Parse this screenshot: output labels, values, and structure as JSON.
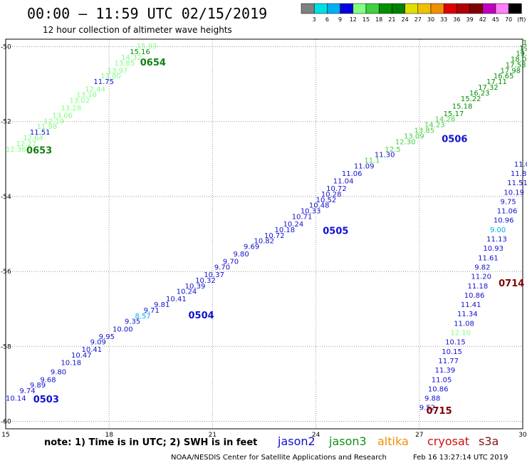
{
  "title": "00:00 – 11:59 UTC 02/15/2019",
  "subtitle": "12 hour collection of altimeter wave heights",
  "note": "note: 1) Time is in UTC; 2) SWH is in feet",
  "credit": "NOAA/NESDIS Center for Satellite Applications and Research",
  "timestamp": "Feb 16 13:27:14 UTC 2019",
  "satellites": [
    {
      "name": "jason2",
      "color": "#1010d0"
    },
    {
      "name": "jason3",
      "color": "#109010"
    },
    {
      "name": "altika",
      "color": "#f09000"
    },
    {
      "name": "cryosat",
      "color": "#d01010"
    },
    {
      "name": "s3a",
      "color": "#801010"
    }
  ],
  "color_scale": {
    "labels": [
      "3",
      "6",
      "9",
      "12",
      "15",
      "18",
      "21",
      "24",
      "27",
      "30",
      "33",
      "36",
      "39",
      "42",
      "45",
      "70",
      "(ft)"
    ],
    "colors": [
      "#808080",
      "#00e0e0",
      "#00b0f0",
      "#0000e0",
      "#80ff80",
      "#40d040",
      "#009000",
      "#008000",
      "#e0e000",
      "#f0c000",
      "#f09000",
      "#e00000",
      "#b00000",
      "#800000",
      "#c000c0",
      "#ff80ff",
      "#000000"
    ]
  },
  "chart_data": {
    "type": "scatter",
    "xlim": [
      15,
      30
    ],
    "ylim": [
      -60.2,
      -49.8
    ],
    "x_ticks": [
      15,
      18,
      21,
      24,
      27,
      30
    ],
    "y_ticks": [
      -50,
      -52,
      -54,
      -56,
      -58,
      -60
    ],
    "grid": true,
    "pass_labels": [
      {
        "label": "0503",
        "x": 15.8,
        "y": -59.5,
        "color": "#1010d0"
      },
      {
        "label": "0504",
        "x": 20.3,
        "y": -57.25,
        "color": "#1010d0"
      },
      {
        "label": "0505",
        "x": 24.2,
        "y": -55.0,
        "color": "#1010d0"
      },
      {
        "label": "0506",
        "x": 27.65,
        "y": -52.55,
        "color": "#1010d0"
      },
      {
        "label": "0653",
        "x": 15.6,
        "y": -52.85,
        "color": "#108010"
      },
      {
        "label": "0654",
        "x": 18.9,
        "y": -50.5,
        "color": "#108010"
      },
      {
        "label": "0714",
        "x": 29.3,
        "y": -56.4,
        "color": "#800000"
      },
      {
        "label": "0715",
        "x": 27.2,
        "y": -59.8,
        "color": "#800000"
      }
    ],
    "series": [
      {
        "name": "0503-0506",
        "points": [
          {
            "x": 15.0,
            "y": -59.45,
            "label": "10.14",
            "color": "#1010d0"
          },
          {
            "x": 15.4,
            "y": -59.25,
            "label": "9.74",
            "color": "#1010d0"
          },
          {
            "x": 15.7,
            "y": -59.1,
            "label": "9.89",
            "color": "#1010d0"
          },
          {
            "x": 16.0,
            "y": -58.95,
            "label": "9.68",
            "color": "#1010d0"
          },
          {
            "x": 16.3,
            "y": -58.75,
            "label": "9.80",
            "color": "#1010d0"
          },
          {
            "x": 16.6,
            "y": -58.5,
            "label": "10.18",
            "color": "#1010d0"
          },
          {
            "x": 16.9,
            "y": -58.3,
            "label": "10.47",
            "color": "#1010d0"
          },
          {
            "x": 17.2,
            "y": -58.15,
            "label": "10.41",
            "color": "#1010d0"
          },
          {
            "x": 17.45,
            "y": -57.95,
            "label": "9.09",
            "color": "#1010d0"
          },
          {
            "x": 17.7,
            "y": -57.8,
            "label": "9.95",
            "color": "#1010d0"
          },
          {
            "x": 18.1,
            "y": -57.6,
            "label": "10.00",
            "color": "#1010d0"
          },
          {
            "x": 18.45,
            "y": -57.4,
            "label": "9.35",
            "color": "#1010d0"
          },
          {
            "x": 18.75,
            "y": -57.25,
            "label": "8.57",
            "color": "#00b0f0"
          },
          {
            "x": 19.0,
            "y": -57.1,
            "label": "9.71",
            "color": "#1010d0"
          },
          {
            "x": 19.3,
            "y": -56.95,
            "label": "9.81",
            "color": "#1010d0"
          },
          {
            "x": 19.65,
            "y": -56.8,
            "label": "10.41",
            "color": "#1010d0"
          },
          {
            "x": 19.95,
            "y": -56.6,
            "label": "10.24",
            "color": "#1010d0"
          },
          {
            "x": 20.2,
            "y": -56.45,
            "label": "10.39",
            "color": "#1010d0"
          },
          {
            "x": 20.5,
            "y": -56.3,
            "label": "10.32",
            "color": "#1010d0"
          },
          {
            "x": 20.75,
            "y": -56.15,
            "label": "10.37",
            "color": "#1010d0"
          },
          {
            "x": 21.05,
            "y": -55.95,
            "label": "9.70",
            "color": "#1010d0"
          },
          {
            "x": 21.3,
            "y": -55.8,
            "label": "9.70",
            "color": "#1010d0"
          },
          {
            "x": 21.6,
            "y": -55.6,
            "label": "9.80",
            "color": "#1010d0"
          },
          {
            "x": 21.9,
            "y": -55.4,
            "label": "9.69",
            "color": "#1010d0"
          },
          {
            "x": 22.2,
            "y": -55.25,
            "label": "10.82",
            "color": "#1010d0"
          },
          {
            "x": 22.5,
            "y": -55.1,
            "label": "10.72",
            "color": "#1010d0"
          },
          {
            "x": 22.8,
            "y": -54.95,
            "label": "10.18",
            "color": "#1010d0"
          },
          {
            "x": 23.05,
            "y": -54.8,
            "label": "10.24",
            "color": "#1010d0"
          },
          {
            "x": 23.3,
            "y": -54.6,
            "label": "10.71",
            "color": "#1010d0"
          },
          {
            "x": 23.55,
            "y": -54.45,
            "label": "10.33",
            "color": "#1010d0"
          },
          {
            "x": 23.8,
            "y": -54.3,
            "label": "10.48",
            "color": "#1010d0"
          },
          {
            "x": 24.0,
            "y": -54.15,
            "label": "10.52",
            "color": "#1010d0"
          },
          {
            "x": 24.15,
            "y": -54.0,
            "label": "10.28",
            "color": "#1010d0"
          },
          {
            "x": 24.3,
            "y": -53.85,
            "label": "10.72",
            "color": "#1010d0"
          },
          {
            "x": 24.5,
            "y": -53.65,
            "label": "11.04",
            "color": "#1010d0"
          },
          {
            "x": 24.75,
            "y": -53.45,
            "label": "11.06",
            "color": "#1010d0"
          },
          {
            "x": 25.1,
            "y": -53.25,
            "label": "11.09",
            "color": "#1010d0"
          },
          {
            "x": 25.4,
            "y": -53.1,
            "label": "11.1",
            "color": "#40d040"
          },
          {
            "x": 25.7,
            "y": -52.95,
            "label": "11.30",
            "color": "#1010d0"
          },
          {
            "x": 26.0,
            "y": -52.8,
            "label": "12.5",
            "color": "#40d040"
          },
          {
            "x": 26.3,
            "y": -52.6,
            "label": "12.30",
            "color": "#40d040"
          },
          {
            "x": 26.55,
            "y": -52.45,
            "label": "13.09",
            "color": "#40d040"
          },
          {
            "x": 26.85,
            "y": -52.3,
            "label": "13.85",
            "color": "#40d040"
          },
          {
            "x": 27.15,
            "y": -52.15,
            "label": "14.23",
            "color": "#40d040"
          },
          {
            "x": 27.45,
            "y": -52.0,
            "label": "14.28",
            "color": "#40d040"
          },
          {
            "x": 27.7,
            "y": -51.85,
            "label": "15.17",
            "color": "#009000"
          },
          {
            "x": 27.95,
            "y": -51.65,
            "label": "15.18",
            "color": "#009000"
          },
          {
            "x": 28.2,
            "y": -51.45,
            "label": "15.22",
            "color": "#009000"
          },
          {
            "x": 28.45,
            "y": -51.3,
            "label": "16.23",
            "color": "#009000"
          },
          {
            "x": 28.7,
            "y": -51.15,
            "label": "17.32",
            "color": "#009000"
          },
          {
            "x": 28.95,
            "y": -51.0,
            "label": "17.11",
            "color": "#009000"
          },
          {
            "x": 29.15,
            "y": -50.85,
            "label": "16.65",
            "color": "#009000"
          },
          {
            "x": 29.35,
            "y": -50.7,
            "label": "17.98",
            "color": "#009000"
          },
          {
            "x": 29.5,
            "y": -50.55,
            "label": "17.58",
            "color": "#009000"
          },
          {
            "x": 29.65,
            "y": -50.4,
            "label": "18.01",
            "color": "#009000"
          },
          {
            "x": 29.8,
            "y": -50.25,
            "label": "19.53",
            "color": "#009000"
          },
          {
            "x": 29.9,
            "y": -50.1,
            "label": "19.90",
            "color": "#009000"
          },
          {
            "x": 30.0,
            "y": -49.95,
            "label": "17.80",
            "color": "#009000"
          }
        ]
      },
      {
        "name": "0653-0654",
        "points": [
          {
            "x": 15.0,
            "y": -52.8,
            "label": "12.36",
            "color": "#80ff80"
          },
          {
            "x": 15.3,
            "y": -52.65,
            "label": "12.27",
            "color": "#80ff80"
          },
          {
            "x": 15.5,
            "y": -52.5,
            "label": "12.64",
            "color": "#80ff80"
          },
          {
            "x": 15.7,
            "y": -52.35,
            "label": "11.51",
            "color": "#1010d0"
          },
          {
            "x": 15.9,
            "y": -52.2,
            "label": "11.98",
            "color": "#80ff80"
          },
          {
            "x": 16.1,
            "y": -52.05,
            "label": "12.19",
            "color": "#80ff80"
          },
          {
            "x": 16.35,
            "y": -51.9,
            "label": "13.06",
            "color": "#80ff80"
          },
          {
            "x": 16.6,
            "y": -51.7,
            "label": "13.28",
            "color": "#80ff80"
          },
          {
            "x": 16.85,
            "y": -51.5,
            "label": "13.02",
            "color": "#80ff80"
          },
          {
            "x": 17.05,
            "y": -51.35,
            "label": "13.10",
            "color": "#80ff80"
          },
          {
            "x": 17.3,
            "y": -51.2,
            "label": "12.44",
            "color": "#80ff80"
          },
          {
            "x": 17.55,
            "y": -51.0,
            "label": "11.75",
            "color": "#1010d0"
          },
          {
            "x": 17.75,
            "y": -50.85,
            "label": "13.80",
            "color": "#80ff80"
          },
          {
            "x": 17.95,
            "y": -50.7,
            "label": "13.97",
            "color": "#80ff80"
          },
          {
            "x": 18.15,
            "y": -50.5,
            "label": "13.85",
            "color": "#80ff80"
          },
          {
            "x": 18.35,
            "y": -50.35,
            "label": "14.32",
            "color": "#80ff80"
          },
          {
            "x": 18.6,
            "y": -50.2,
            "label": "15.16",
            "color": "#009000"
          },
          {
            "x": 18.8,
            "y": -50.05,
            "label": "15.93",
            "color": "#80ff80"
          }
        ]
      },
      {
        "name": "0714-0715",
        "points": [
          {
            "x": 27.0,
            "y": -59.7,
            "label": "9.52",
            "color": "#1010d0"
          },
          {
            "x": 27.15,
            "y": -59.45,
            "label": "9.88",
            "color": "#1010d0"
          },
          {
            "x": 27.25,
            "y": -59.2,
            "label": "10.86",
            "color": "#1010d0"
          },
          {
            "x": 27.35,
            "y": -58.95,
            "label": "11.05",
            "color": "#1010d0"
          },
          {
            "x": 27.45,
            "y": -58.7,
            "label": "11.39",
            "color": "#1010d0"
          },
          {
            "x": 27.55,
            "y": -58.45,
            "label": "11.77",
            "color": "#1010d0"
          },
          {
            "x": 27.65,
            "y": -58.2,
            "label": "10.15",
            "color": "#1010d0"
          },
          {
            "x": 27.75,
            "y": -57.95,
            "label": "10.15",
            "color": "#1010d0"
          },
          {
            "x": 27.9,
            "y": -57.7,
            "label": "12.10",
            "color": "#80ff80"
          },
          {
            "x": 28.0,
            "y": -57.45,
            "label": "11.08",
            "color": "#1010d0"
          },
          {
            "x": 28.1,
            "y": -57.2,
            "label": "11.34",
            "color": "#1010d0"
          },
          {
            "x": 28.2,
            "y": -56.95,
            "label": "11.41",
            "color": "#1010d0"
          },
          {
            "x": 28.3,
            "y": -56.7,
            "label": "10.86",
            "color": "#1010d0"
          },
          {
            "x": 28.4,
            "y": -56.45,
            "label": "11.18",
            "color": "#1010d0"
          },
          {
            "x": 28.5,
            "y": -56.2,
            "label": "11.20",
            "color": "#1010d0"
          },
          {
            "x": 28.6,
            "y": -55.95,
            "label": "9.82",
            "color": "#1010d0"
          },
          {
            "x": 28.7,
            "y": -55.7,
            "label": "11.61",
            "color": "#1010d0"
          },
          {
            "x": 28.85,
            "y": -55.45,
            "label": "10.93",
            "color": "#1010d0"
          },
          {
            "x": 28.95,
            "y": -55.2,
            "label": "11.13",
            "color": "#1010d0"
          },
          {
            "x": 29.05,
            "y": -54.95,
            "label": "9.00",
            "color": "#00b0f0"
          },
          {
            "x": 29.15,
            "y": -54.7,
            "label": "10.96",
            "color": "#1010d0"
          },
          {
            "x": 29.25,
            "y": -54.45,
            "label": "11.06",
            "color": "#1010d0"
          },
          {
            "x": 29.35,
            "y": -54.2,
            "label": "9.75",
            "color": "#1010d0"
          },
          {
            "x": 29.45,
            "y": -53.95,
            "label": "10.19",
            "color": "#1010d0"
          },
          {
            "x": 29.55,
            "y": -53.7,
            "label": "11.51",
            "color": "#1010d0"
          },
          {
            "x": 29.65,
            "y": -53.45,
            "label": "11.80",
            "color": "#1010d0"
          },
          {
            "x": 29.75,
            "y": -53.2,
            "label": "11.0",
            "color": "#1010d0"
          }
        ]
      }
    ]
  }
}
